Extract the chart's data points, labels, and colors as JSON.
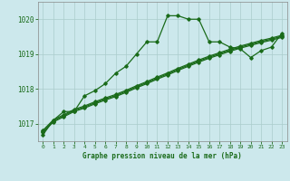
{
  "title": "Graphe pression niveau de la mer (hPa)",
  "background_color": "#cce8ec",
  "grid_color": "#aacccc",
  "line_color": "#1a6b1a",
  "xlim": [
    -0.5,
    23.5
  ],
  "ylim": [
    1016.5,
    1020.5
  ],
  "yticks": [
    1017,
    1018,
    1019,
    1020
  ],
  "xticks": [
    0,
    1,
    2,
    3,
    4,
    5,
    6,
    7,
    8,
    9,
    10,
    11,
    12,
    13,
    14,
    15,
    16,
    17,
    18,
    19,
    20,
    21,
    22,
    23
  ],
  "series1_x": [
    0,
    1,
    2,
    3,
    4,
    5,
    6,
    7,
    8,
    9,
    10,
    11,
    12,
    13,
    14,
    15,
    16,
    17,
    18,
    19,
    20,
    21,
    22,
    23
  ],
  "series1_y": [
    1016.68,
    1017.1,
    1017.35,
    1017.35,
    1017.8,
    1017.95,
    1018.15,
    1018.45,
    1018.65,
    1019.0,
    1019.35,
    1019.35,
    1020.1,
    1020.1,
    1020.0,
    1020.0,
    1019.35,
    1019.35,
    1019.2,
    1019.15,
    1018.9,
    1019.1,
    1019.2,
    1019.6
  ],
  "series2_x": [
    0,
    1,
    2,
    3,
    4,
    5,
    6,
    7,
    8,
    9,
    10,
    11,
    12,
    13,
    14,
    15,
    16,
    17,
    18,
    19,
    20,
    21,
    22,
    23
  ],
  "series2_y": [
    1016.75,
    1017.05,
    1017.2,
    1017.35,
    1017.45,
    1017.57,
    1017.68,
    1017.78,
    1017.9,
    1018.03,
    1018.15,
    1018.28,
    1018.4,
    1018.53,
    1018.65,
    1018.77,
    1018.88,
    1018.98,
    1019.08,
    1019.17,
    1019.25,
    1019.33,
    1019.4,
    1019.48
  ],
  "series3_x": [
    0,
    1,
    2,
    3,
    4,
    5,
    6,
    7,
    8,
    9,
    10,
    11,
    12,
    13,
    14,
    15,
    16,
    17,
    18,
    19,
    20,
    21,
    22,
    23
  ],
  "series3_y": [
    1016.78,
    1017.08,
    1017.23,
    1017.38,
    1017.48,
    1017.6,
    1017.71,
    1017.81,
    1017.93,
    1018.06,
    1018.18,
    1018.31,
    1018.43,
    1018.56,
    1018.68,
    1018.8,
    1018.91,
    1019.01,
    1019.11,
    1019.2,
    1019.28,
    1019.36,
    1019.43,
    1019.51
  ],
  "series4_x": [
    0,
    1,
    2,
    3,
    4,
    5,
    6,
    7,
    8,
    9,
    10,
    11,
    12,
    13,
    14,
    15,
    16,
    17,
    18,
    19,
    20,
    21,
    22,
    23
  ],
  "series4_y": [
    1016.81,
    1017.11,
    1017.26,
    1017.41,
    1017.51,
    1017.63,
    1017.74,
    1017.84,
    1017.96,
    1018.09,
    1018.21,
    1018.34,
    1018.46,
    1018.59,
    1018.71,
    1018.83,
    1018.94,
    1019.04,
    1019.14,
    1019.23,
    1019.31,
    1019.39,
    1019.46,
    1019.54
  ]
}
